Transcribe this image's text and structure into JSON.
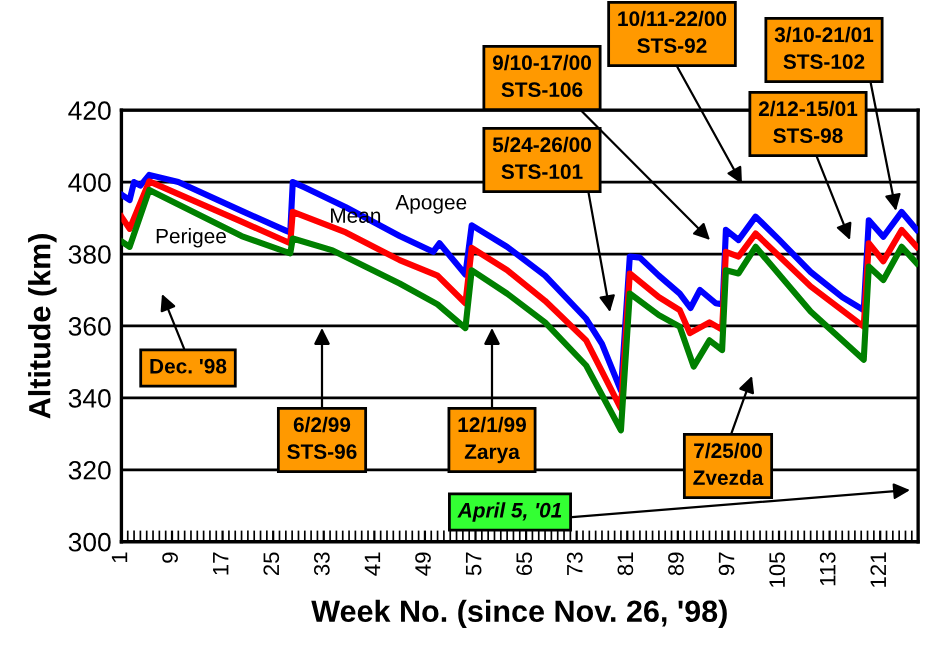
{
  "chart_data": {
    "type": "line",
    "xlabel": "Week No. (since Nov. 26, '98)",
    "ylabel": "Altitude (km)",
    "xlim": [
      1,
      127
    ],
    "ylim": [
      300,
      420
    ],
    "xticks": [
      1,
      9,
      17,
      25,
      33,
      41,
      49,
      57,
      65,
      73,
      81,
      89,
      97,
      105,
      113,
      121
    ],
    "yticks": [
      300,
      320,
      340,
      360,
      380,
      400,
      420
    ],
    "grid": "y",
    "legend": false,
    "marker": "none",
    "line_style": "solid",
    "series": [
      {
        "name": "Apogee",
        "color": "#0000ff",
        "x": [
          1,
          2.3,
          3,
          4,
          5.4,
          10,
          20,
          27,
          27.7,
          28.1,
          30,
          36.5,
          45,
          50.3,
          51.3,
          55.4,
          56.4,
          62,
          68,
          74.5,
          77,
          80,
          81.4,
          83,
          86,
          89.3,
          91,
          92.5,
          95,
          96.1,
          96.6,
          98.6,
          101.3,
          105,
          110,
          115,
          118.4,
          119.2,
          121.5,
          124.4,
          126.8
        ],
        "values": [
          396.5,
          395,
          400,
          399,
          402,
          400,
          392,
          386.5,
          386,
          400,
          398.5,
          393,
          385,
          380.6,
          383,
          374.3,
          388,
          382,
          374,
          362,
          355,
          342,
          379.3,
          379,
          374,
          369,
          365,
          370,
          366.3,
          366,
          386.7,
          383.9,
          390.4,
          384,
          375,
          368,
          364.4,
          389.4,
          384.8,
          391.7,
          386.7
        ]
      },
      {
        "name": "Mean",
        "color": "#ff0000",
        "x": [
          1,
          2.3,
          5.4,
          20,
          27.7,
          28.1,
          36.5,
          45,
          51,
          55.4,
          56.4,
          62,
          68,
          74.5,
          80,
          81.4,
          86,
          89.3,
          90.9,
          94,
          96,
          96.6,
          98.6,
          101.3,
          110,
          118.4,
          119.2,
          121.5,
          124.4,
          126.8
        ],
        "values": [
          390.4,
          387,
          400.2,
          389,
          383,
          391.7,
          386,
          378.3,
          374,
          366.3,
          381.7,
          375.5,
          367,
          356,
          337,
          374.6,
          368,
          364.4,
          358,
          361,
          359,
          380.6,
          379.3,
          385.7,
          371,
          359.8,
          383,
          378,
          386.7,
          382
        ]
      },
      {
        "name": "Perigee",
        "color": "#008000",
        "x": [
          1,
          2.3,
          5.4,
          20,
          27.7,
          28.1,
          34.4,
          45,
          51,
          55.4,
          56.4,
          62,
          68,
          74.5,
          80,
          81.4,
          86,
          89.3,
          91.5,
          94,
          96,
          96.6,
          98.6,
          101.3,
          110,
          118.4,
          119.2,
          121.5,
          124.4,
          126.8
        ],
        "values": [
          383.5,
          382,
          397.8,
          385,
          380.2,
          384.3,
          381,
          371.8,
          366,
          359.4,
          375.5,
          369,
          361,
          349,
          331,
          369,
          363,
          359.8,
          348.7,
          356,
          353.3,
          375.5,
          374.6,
          382,
          364,
          350.6,
          376.5,
          372.8,
          382,
          377.4
        ]
      }
    ],
    "annotations": [
      "Dec. '98",
      "6/2/99\nSTS-96",
      "12/1/99\nZarya",
      "7/25/00\nZvezda",
      "5/24-26/00\nSTS-101",
      "9/10-17/00\nSTS-106",
      "10/11-22/00\nSTS-92",
      "2/12-15/01\nSTS-98",
      {
        "text": "3/10-21/01\nSTS-102",
        "x": 123.5,
        "y": 392
      },
      "April 5, '01"
    ]
  }
}
